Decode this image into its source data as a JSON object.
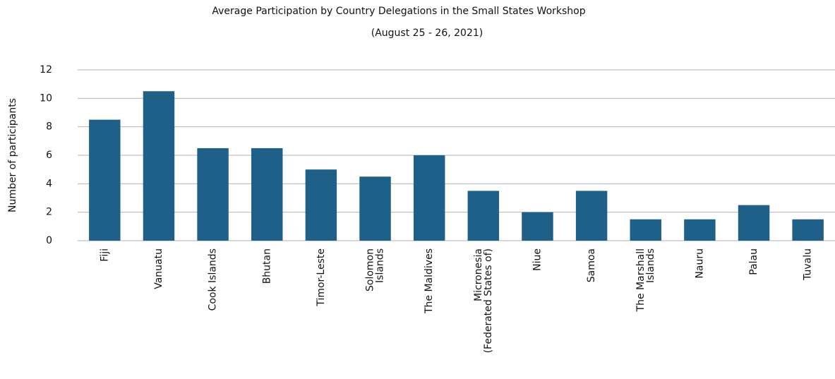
{
  "chart_data": {
    "type": "bar",
    "title": "Average Participation by Country Delegations in the Small States Workshop",
    "subtitle": "(August 25 - 26, 2021)",
    "y_label": "Number of participants",
    "categories": [
      "Fiji",
      "Vanuatu",
      "Cook Islands",
      "Bhutan",
      "Timor-Leste",
      "Solomon\nIslands",
      "The Maldives",
      "Micronesia\n(Federated States of)",
      "Niue",
      "Samoa",
      "The Marshall\nIslands",
      "Nauru",
      "Palau",
      "Tuvalu"
    ],
    "values": [
      8.5,
      10.5,
      6.5,
      6.5,
      5,
      4.5,
      6,
      3.5,
      2,
      3.5,
      1.5,
      1.5,
      2.5,
      1.5
    ],
    "color": "#1f6088",
    "ylim": [
      0,
      12
    ],
    "yticks": [
      0,
      2,
      4,
      6,
      8,
      10,
      12
    ],
    "grid": true
  }
}
